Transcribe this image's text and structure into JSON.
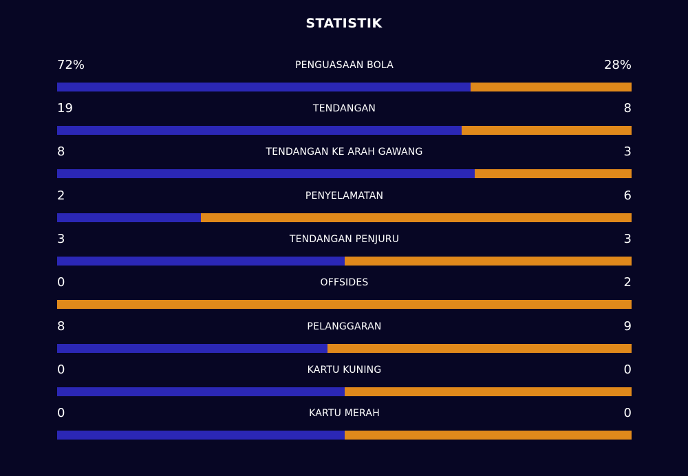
{
  "title": "STATISTIK",
  "colors": {
    "background": "#070624",
    "home_bar": "#2b27b5",
    "away_bar": "#e0891b",
    "text": "#ffffff"
  },
  "stats": [
    {
      "label": "PENGUASAAN BOLA",
      "home": "72%",
      "away": "28%",
      "home_share": 0.72
    },
    {
      "label": "TENDANGAN",
      "home": "19",
      "away": "8",
      "home_share": 0.7037
    },
    {
      "label": "TENDANGAN KE ARAH GAWANG",
      "home": "8",
      "away": "3",
      "home_share": 0.7273
    },
    {
      "label": "PENYELAMATAN",
      "home": "2",
      "away": "6",
      "home_share": 0.25
    },
    {
      "label": "TENDANGAN PENJURU",
      "home": "3",
      "away": "3",
      "home_share": 0.5
    },
    {
      "label": "OFFSIDES",
      "home": "0",
      "away": "2",
      "home_share": 0
    },
    {
      "label": "PELANGGARAN",
      "home": "8",
      "away": "9",
      "home_share": 0.4706
    },
    {
      "label": "KARTU KUNING",
      "home": "0",
      "away": "0",
      "home_share": 0.5
    },
    {
      "label": "KARTU MERAH",
      "home": "0",
      "away": "0",
      "home_share": 0.5
    }
  ]
}
